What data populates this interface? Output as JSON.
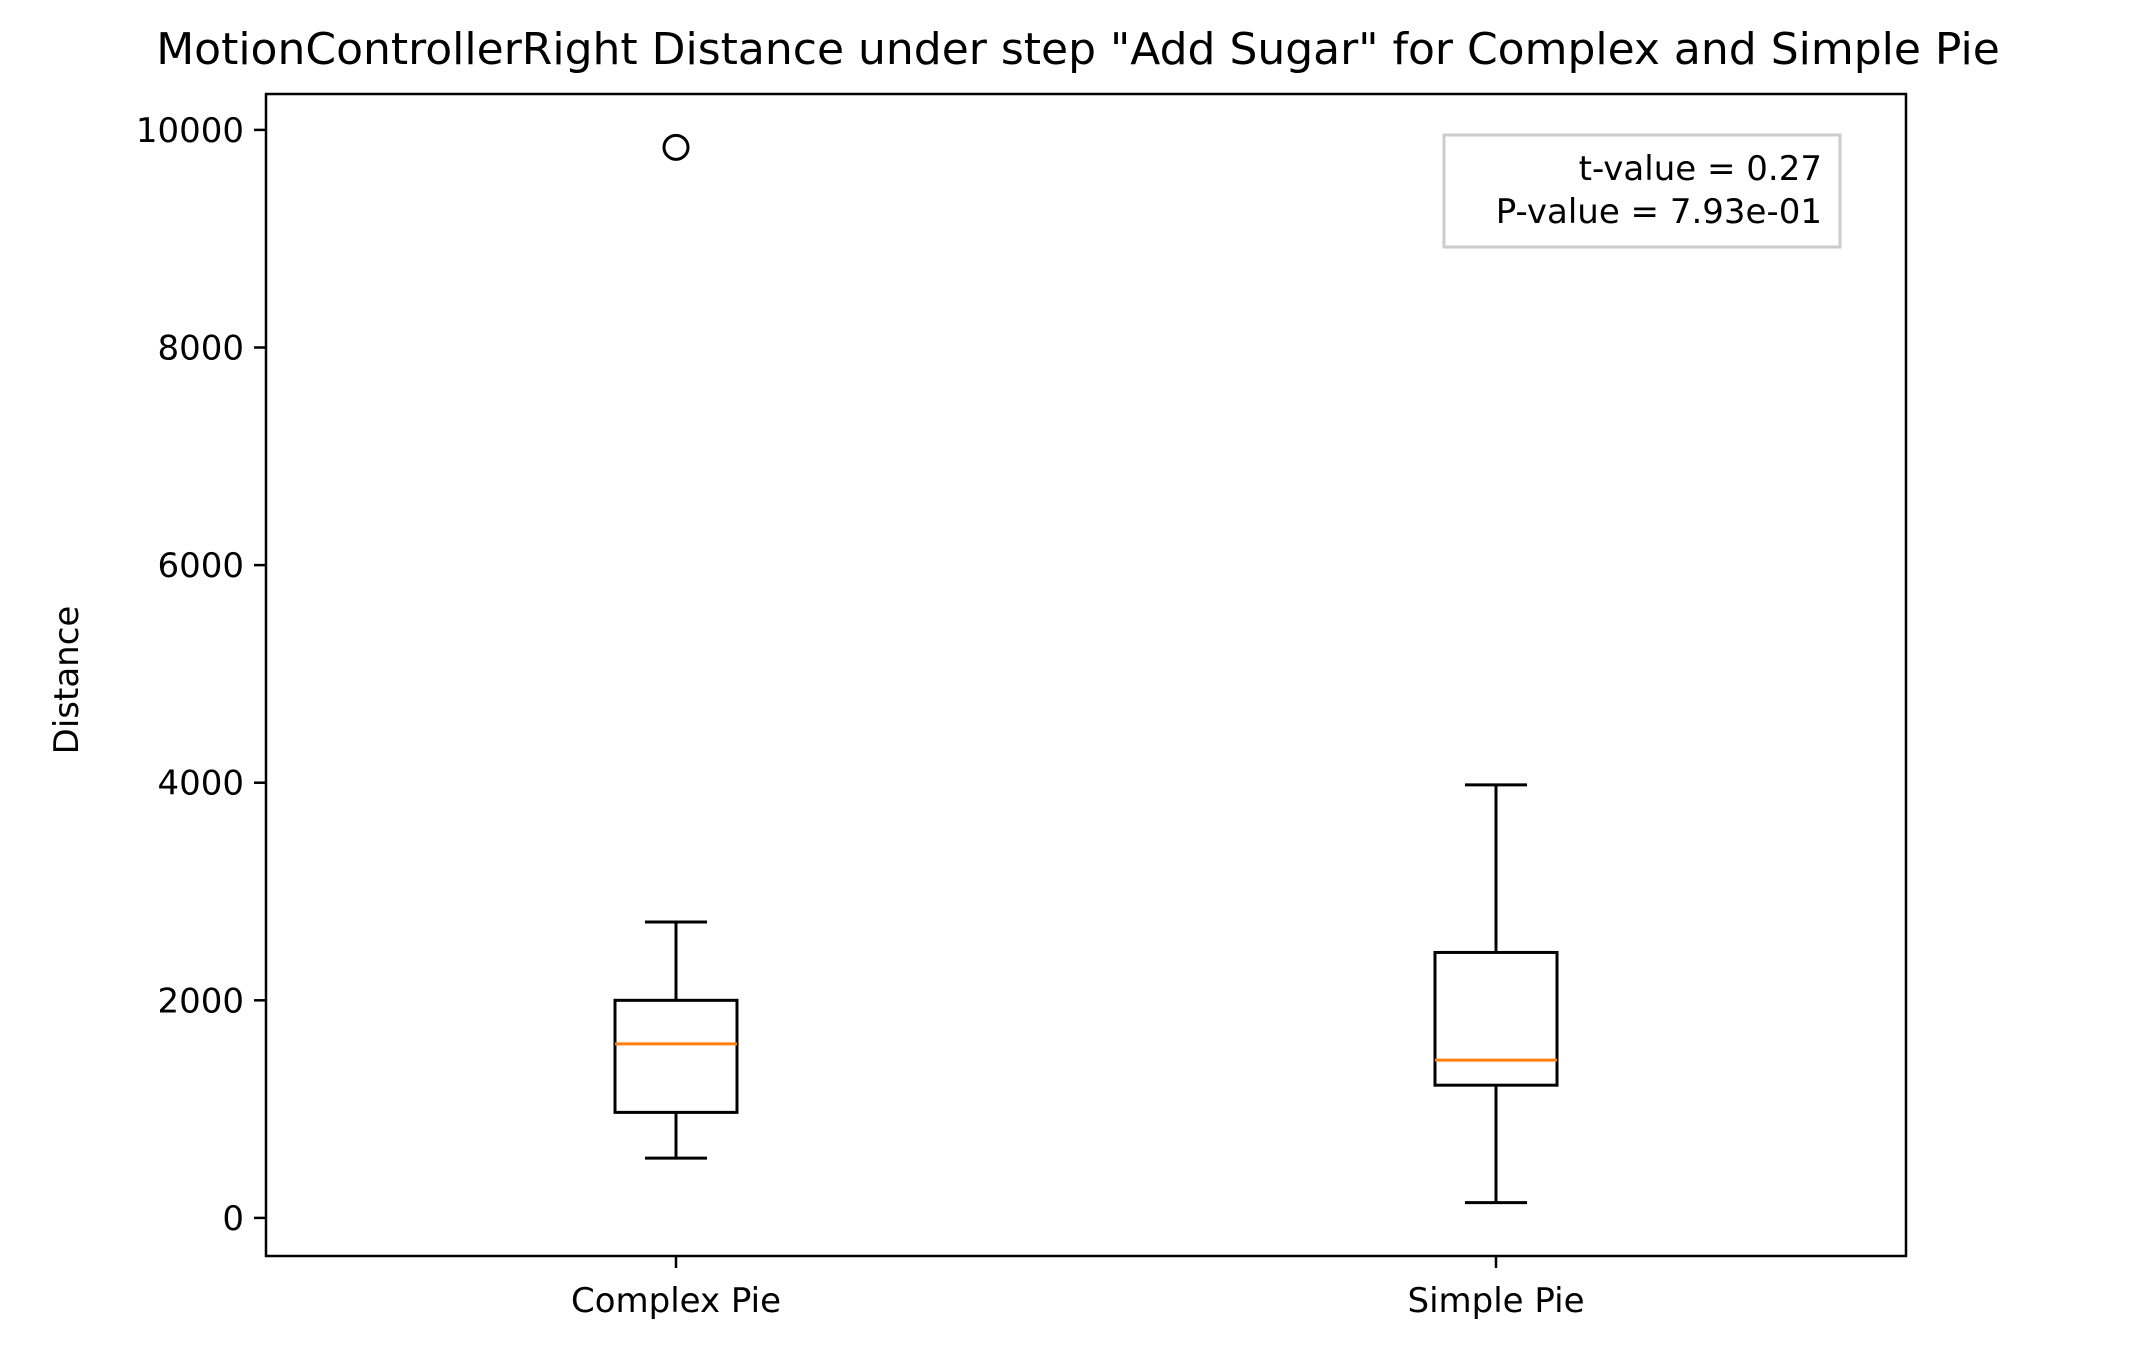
{
  "chart_data": {
    "type": "box",
    "title": "MotionControllerRight Distance under step \"Add Sugar\" for Complex and Simple Pie",
    "xlabel": "",
    "ylabel": "Distance",
    "categories": [
      "Complex Pie",
      "Simple Pie"
    ],
    "boxes": [
      {
        "category": "Complex Pie",
        "whisker_low": 550,
        "q1": 970,
        "median": 1600,
        "q3": 2000,
        "whisker_high": 2720,
        "outliers": [
          9840
        ]
      },
      {
        "category": "Simple Pie",
        "whisker_low": 140,
        "q1": 1220,
        "median": 1450,
        "q3": 2440,
        "whisker_high": 3980,
        "outliers": []
      }
    ],
    "ylim": [
      -350,
      10330
    ],
    "yticks": [
      0,
      2000,
      4000,
      6000,
      8000,
      10000
    ],
    "ytick_labels": [
      "0",
      "2000",
      "4000",
      "6000",
      "8000",
      "10000"
    ],
    "grid": false,
    "annotation": {
      "lines": [
        "t-value = 0.27",
        "P-value = 7.93e-01"
      ],
      "placement": "top-right"
    },
    "colors": {
      "box": "#000000",
      "median": "#ff7f0e",
      "annotation_border": "#cccccc"
    }
  }
}
